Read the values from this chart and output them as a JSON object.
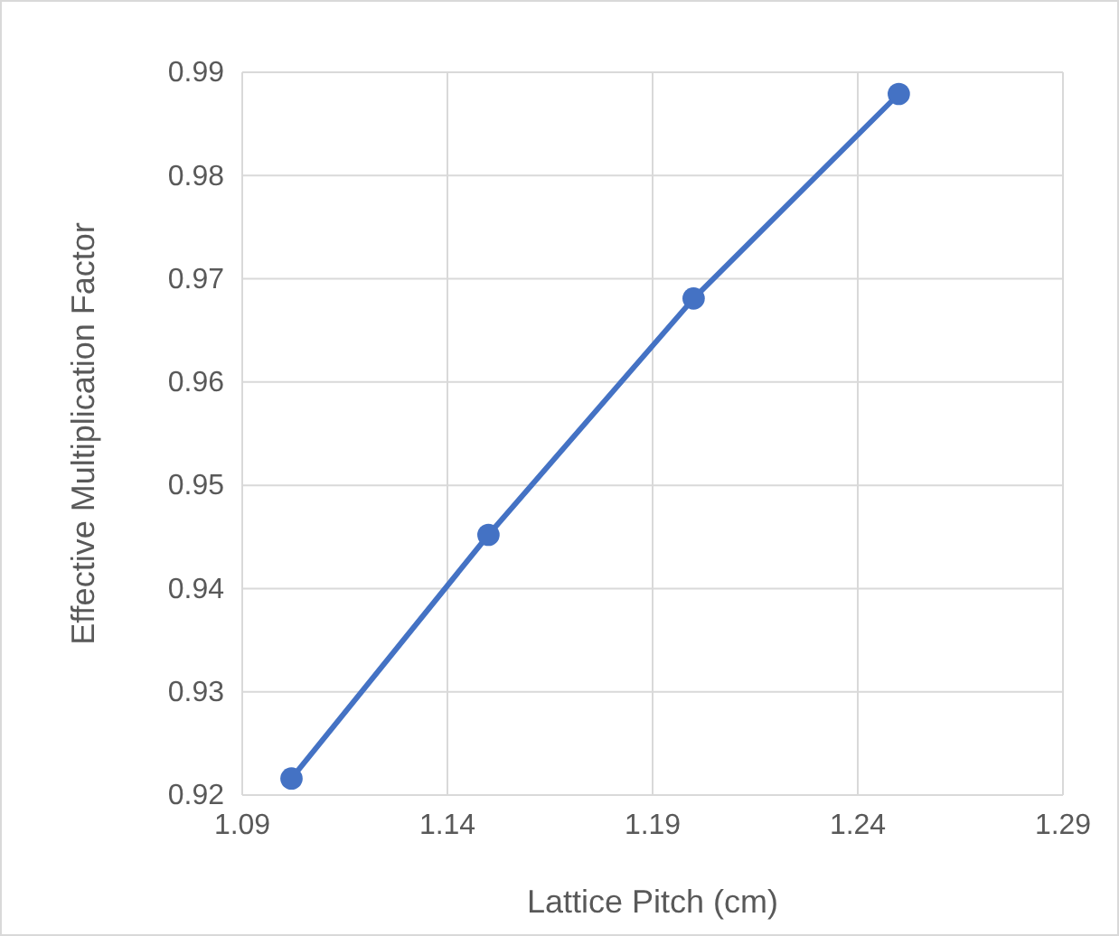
{
  "chart_data": {
    "type": "line",
    "xlabel": "Lattice Pitch (cm)",
    "ylabel": "Effective Multiplication Factor",
    "x": [
      1.102,
      1.15,
      1.2,
      1.25
    ],
    "series": [
      {
        "color": "#4472c4",
        "values": [
          0.9216,
          0.9452,
          0.9681,
          0.9879
        ]
      }
    ],
    "xlim": [
      1.09,
      1.29
    ],
    "xticks": [
      1.09,
      1.14,
      1.19,
      1.24,
      1.29
    ],
    "ylim": [
      0.92,
      0.99
    ],
    "yticks": [
      {
        "value": 0.92,
        "label": "0.92"
      },
      {
        "value": 0.93,
        "label": "0.93"
      },
      {
        "value": 0.94,
        "label": "0.94"
      },
      {
        "value": 0.95,
        "label": "0.95"
      },
      {
        "value": 0.96,
        "label": "0.96"
      },
      {
        "value": 0.97,
        "label": "0.97"
      },
      {
        "value": 0.98,
        "label": "0.98"
      },
      {
        "value": 0.99,
        "label": "0.99"
      }
    ],
    "grid": true,
    "marker": "circle",
    "line_style": "solid"
  }
}
